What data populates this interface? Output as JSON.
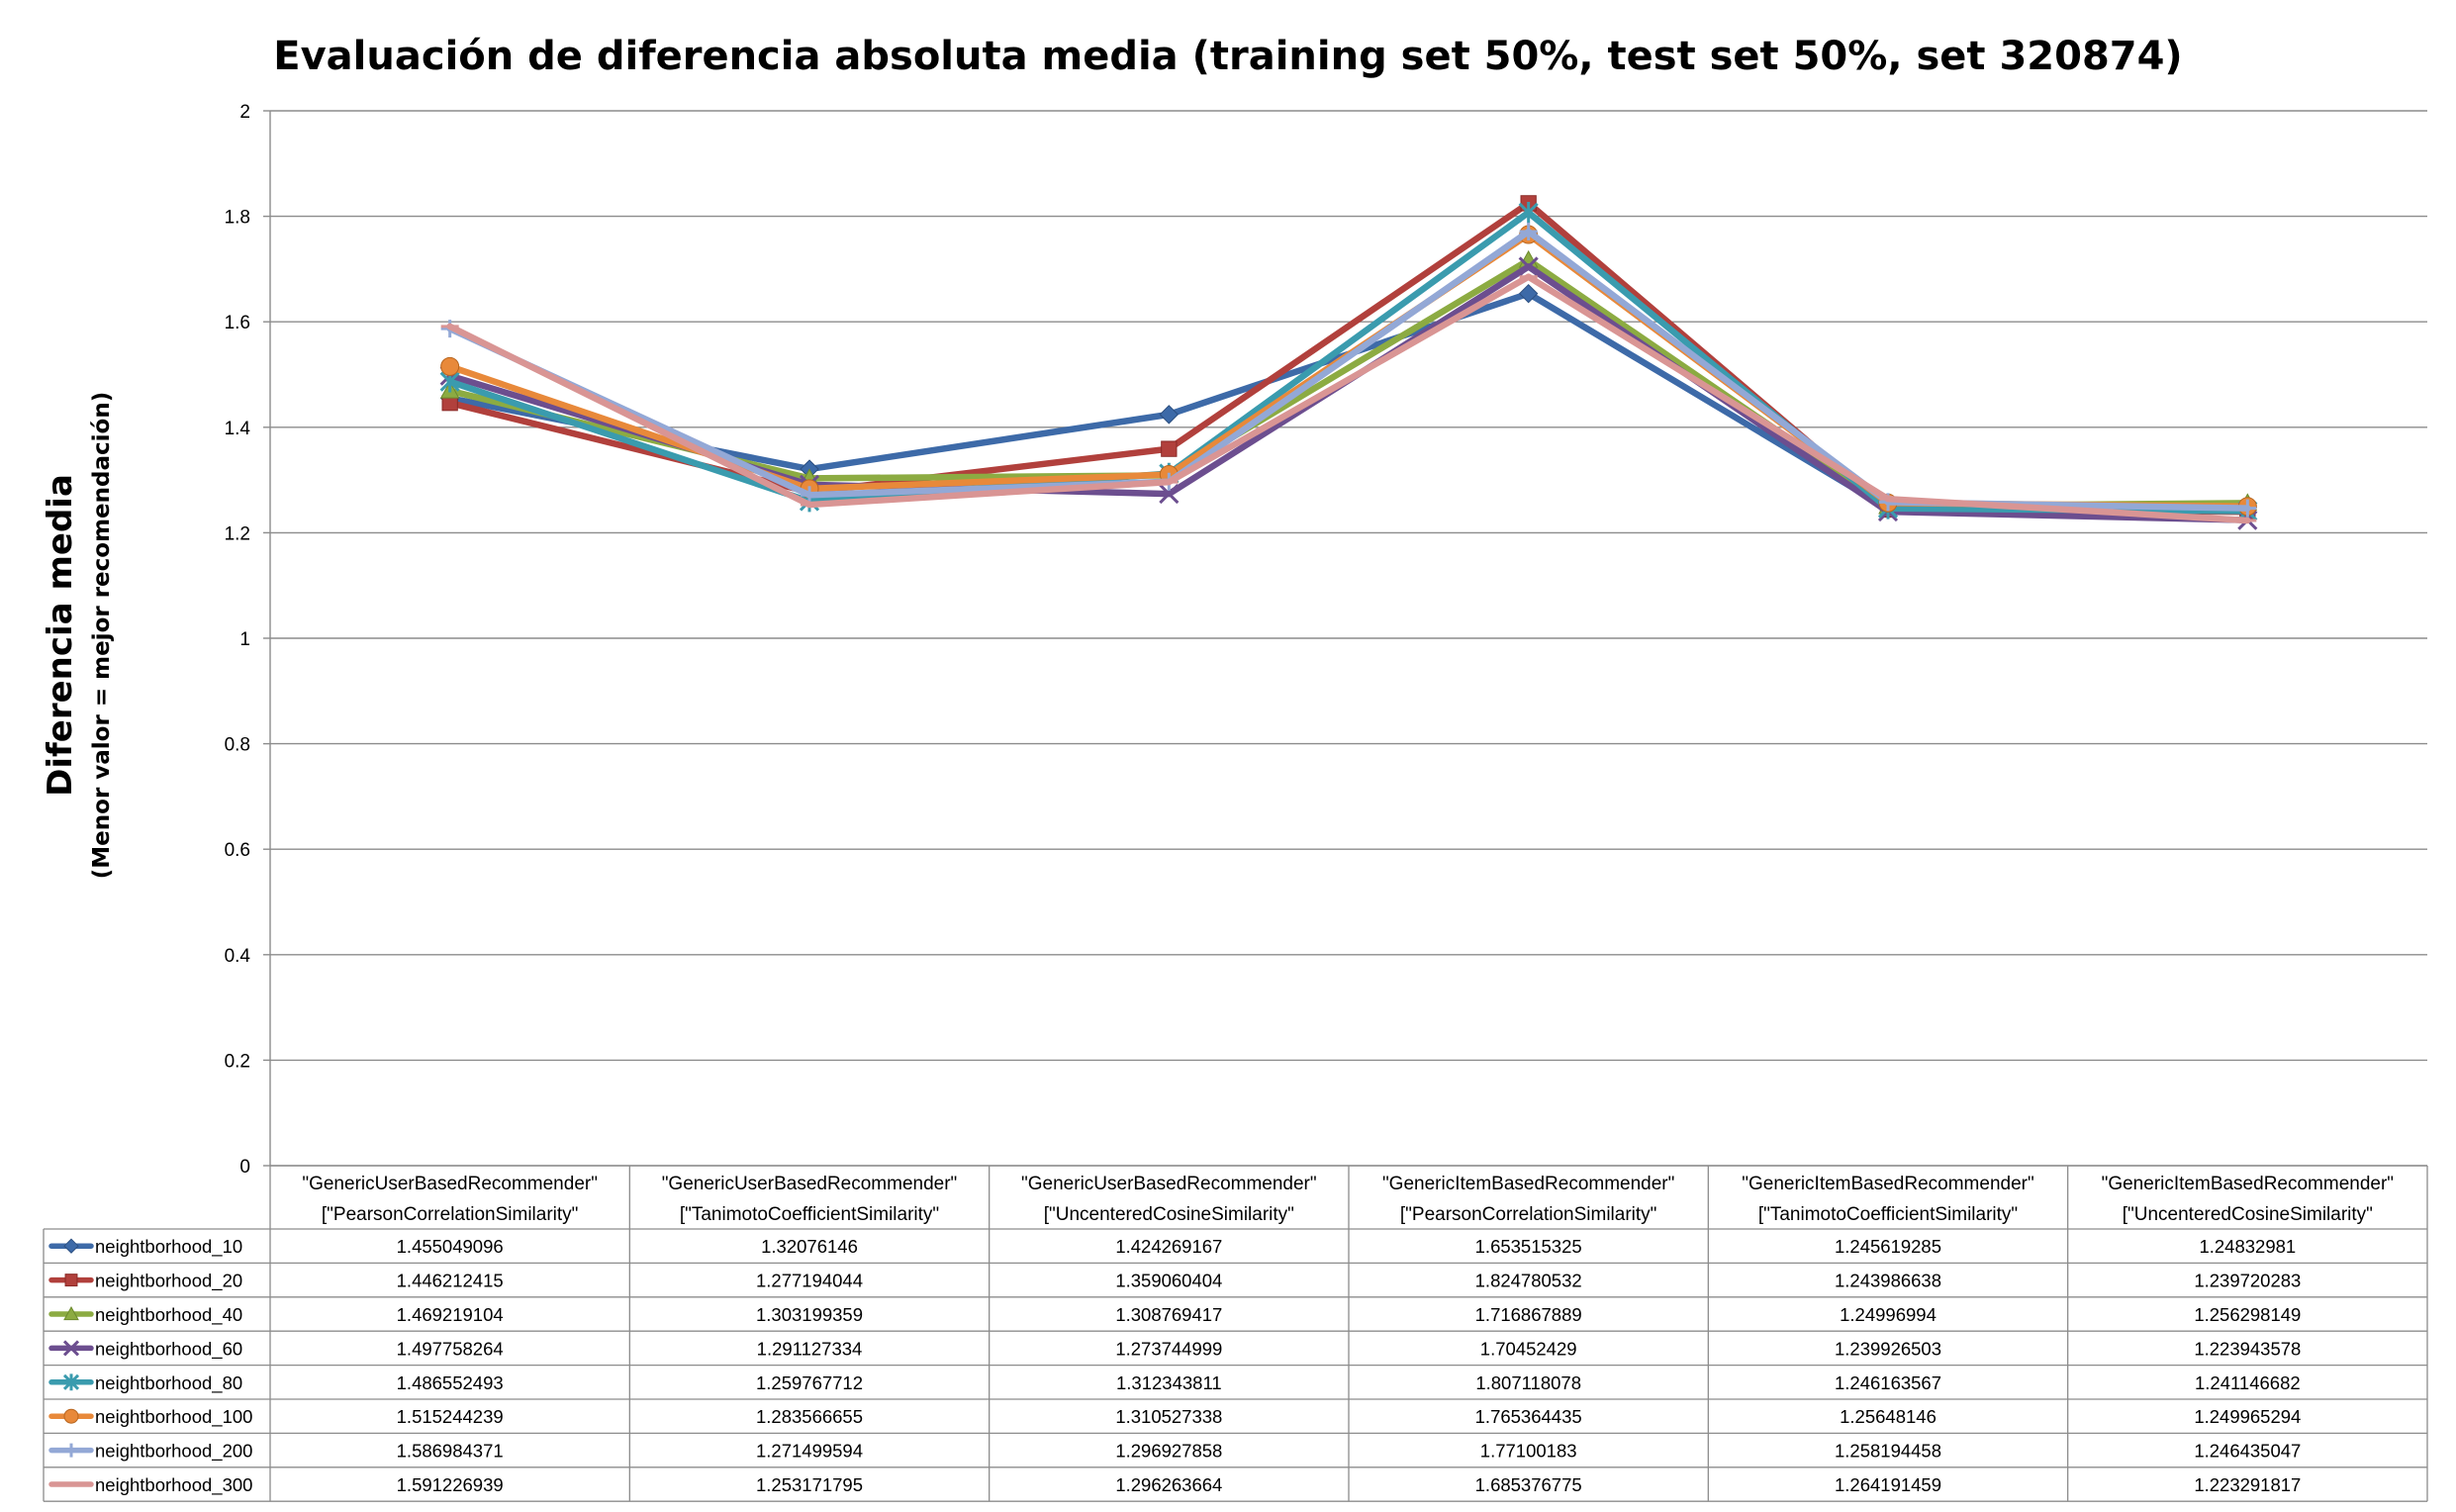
{
  "chart_data": {
    "type": "line",
    "title": "Evaluación de diferencia absoluta media (training set 50%, test set 50%, set 320874)",
    "ylabel": "Diferencia media",
    "ylabel_sub": "(Menor valor = mejor recomendación)",
    "xlabel": "",
    "ylim": [
      0,
      2
    ],
    "yticks": [
      "0",
      "0.2",
      "0.4",
      "0.6",
      "0.8",
      "1",
      "1.2",
      "1.4",
      "1.6",
      "1.8",
      "2"
    ],
    "grid": true,
    "legend_placement": "data-table-left",
    "categories": [
      {
        "line1": "\"GenericUserBasedRecommender\"",
        "line2": "[\"PearsonCorrelationSimilarity\""
      },
      {
        "line1": "\"GenericUserBasedRecommender\"",
        "line2": "[\"TanimotoCoefficientSimilarity\""
      },
      {
        "line1": "\"GenericUserBasedRecommender\"",
        "line2": "[\"UncenteredCosineSimilarity\""
      },
      {
        "line1": "\"GenericItemBasedRecommender\"",
        "line2": "[\"PearsonCorrelationSimilarity\""
      },
      {
        "line1": "\"GenericItemBasedRecommender\"",
        "line2": "[\"TanimotoCoefficientSimilarity\""
      },
      {
        "line1": "\"GenericItemBasedRecommender\"",
        "line2": "[\"UncenteredCosineSimilarity\""
      }
    ],
    "series": [
      {
        "name": "neightborhood_10",
        "color": "#3d6aa8",
        "marker": "diamond",
        "values": [
          1.455049096,
          1.32076146,
          1.424269167,
          1.653515325,
          1.245619285,
          1.24832981
        ],
        "labels": [
          "1.455049096",
          "1.32076146",
          "1.424269167",
          "1.653515325",
          "1.245619285",
          "1.24832981"
        ]
      },
      {
        "name": "neightborhood_20",
        "color": "#b1403c",
        "marker": "square",
        "values": [
          1.446212415,
          1.277194044,
          1.359060404,
          1.824780532,
          1.243986638,
          1.239720283
        ],
        "labels": [
          "1.446212415",
          "1.277194044",
          "1.359060404",
          "1.824780532",
          "1.243986638",
          "1.239720283"
        ]
      },
      {
        "name": "neightborhood_40",
        "color": "#8cab42",
        "marker": "triangle",
        "values": [
          1.469219104,
          1.303199359,
          1.308769417,
          1.716867889,
          1.24996994,
          1.256298149
        ],
        "labels": [
          "1.469219104",
          "1.303199359",
          "1.308769417",
          "1.716867889",
          "1.24996994",
          "1.256298149"
        ]
      },
      {
        "name": "neightborhood_60",
        "color": "#6c4e8f",
        "marker": "x",
        "values": [
          1.497758264,
          1.291127334,
          1.273744999,
          1.70452429,
          1.239926503,
          1.223943578
        ],
        "labels": [
          "1.497758264",
          "1.291127334",
          "1.273744999",
          "1.70452429",
          "1.239926503",
          "1.223943578"
        ]
      },
      {
        "name": "neightborhood_80",
        "color": "#3a9bae",
        "marker": "star",
        "values": [
          1.486552493,
          1.259767712,
          1.312343811,
          1.807118078,
          1.246163567,
          1.241146682
        ],
        "labels": [
          "1.486552493",
          "1.259767712",
          "1.312343811",
          "1.807118078",
          "1.246163567",
          "1.241146682"
        ]
      },
      {
        "name": "neightborhood_100",
        "color": "#e8893a",
        "marker": "circle",
        "values": [
          1.515244239,
          1.283566655,
          1.310527338,
          1.765364435,
          1.25648146,
          1.249965294
        ],
        "labels": [
          "1.515244239",
          "1.283566655",
          "1.310527338",
          "1.765364435",
          "1.25648146",
          "1.249965294"
        ]
      },
      {
        "name": "neightborhood_200",
        "color": "#93a8d6",
        "marker": "plus",
        "values": [
          1.586984371,
          1.271499594,
          1.296927858,
          1.77100183,
          1.258194458,
          1.246435047
        ],
        "labels": [
          "1.586984371",
          "1.271499594",
          "1.296927858",
          "1.77100183",
          "1.258194458",
          "1.246435047"
        ]
      },
      {
        "name": "neightborhood_300",
        "color": "#d99594",
        "marker": "line",
        "values": [
          1.591226939,
          1.253171795,
          1.296263664,
          1.685376775,
          1.264191459,
          1.223291817
        ],
        "labels": [
          "1.591226939",
          "1.253171795",
          "1.296263664",
          "1.685376775",
          "1.264191459",
          "1.223291817"
        ]
      }
    ]
  }
}
